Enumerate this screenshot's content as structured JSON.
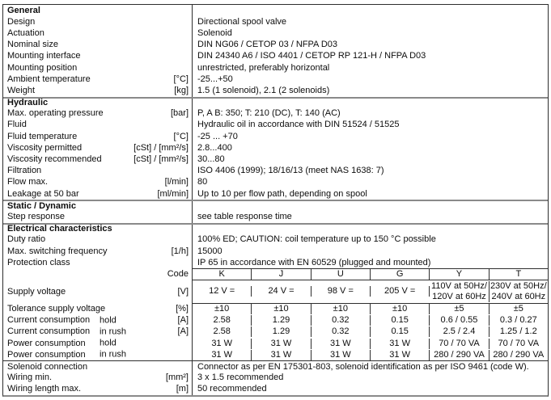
{
  "general": {
    "title": "General",
    "design": {
      "label": "Design",
      "value": "Directional spool valve"
    },
    "actuation": {
      "label": "Actuation",
      "value": "Solenoid"
    },
    "nominal_size": {
      "label": "Nominal size",
      "value": "DIN NG06 / CETOP 03 / NFPA D03"
    },
    "mounting_interface": {
      "label": "Mounting interface",
      "value": "DIN 24340 A6 / ISO 4401 / CETOP RP 121-H / NFPA D03"
    },
    "mounting_position": {
      "label": "Mounting position",
      "value": "unrestricted, preferably horizontal"
    },
    "ambient_temperature": {
      "label": "Ambient temperature",
      "unit": "[°C]",
      "value": "-25...+50"
    },
    "weight": {
      "label": "Weight",
      "unit": "[kg]",
      "value": "1.5 (1 solenoid), 2.1 (2 solenoids)"
    }
  },
  "hydraulic": {
    "title": "Hydraulic",
    "max_operating_pressure": {
      "label": "Max. operating pressure",
      "unit": "[bar]",
      "value": "P, A B: 350; T: 210 (DC), T: 140 (AC)"
    },
    "fluid": {
      "label": "Fluid",
      "value": "Hydraulic oil in accordance with DIN 51524 / 51525"
    },
    "fluid_temperature": {
      "label": "Fluid temperature",
      "unit": "[°C]",
      "value": "-25 ... +70"
    },
    "viscosity_permitted": {
      "label": "Viscosity permitted",
      "unit": "[cSt] / [mm²/s]",
      "value": "2.8...400"
    },
    "viscosity_recommended": {
      "label": "Viscosity recommended",
      "unit": "[cSt] / [mm²/s]",
      "value": "30...80"
    },
    "filtration": {
      "label": "Filtration",
      "value": "ISO 4406 (1999); 18/16/13 (meet NAS 1638: 7)"
    },
    "flow_max": {
      "label": "Flow max.",
      "unit": "[l/min]",
      "value": "80"
    },
    "leakage": {
      "label": "Leakage at 50 bar",
      "unit": "[ml/min]",
      "value": "Up to 10 per flow path, depending on spool"
    }
  },
  "static_dynamic": {
    "title": "Static / Dynamic",
    "step_response": {
      "label": "Step response",
      "value": "see table response time"
    }
  },
  "electrical": {
    "title": "Electrical characteristics",
    "duty_ratio": {
      "label": "Duty ratio",
      "value": "100% ED; CAUTION: coil temperature up to 150 °C possible"
    },
    "max_switching_frequency": {
      "label": "Max. switching frequency",
      "unit": "[1/h]",
      "value": "15000"
    },
    "protection_class": {
      "label": "Protection class",
      "value": "IP 65 in accordance with EN 60529 (plugged and mounted)"
    },
    "code_header": {
      "label": "Code",
      "codes": [
        "K",
        "J",
        "U",
        "G",
        "Y",
        "T"
      ]
    },
    "supply_voltage": {
      "label": "Supply voltage",
      "unit": "[V]",
      "values": [
        "12 V =",
        "24 V =",
        "98 V =",
        "205 V =",
        "110V at 50Hz/\n120V at 60Hz",
        "230V at 50Hz/\n240V at 60Hz"
      ]
    },
    "tolerance": {
      "label": "Tolerance supply voltage",
      "unit": "[%]",
      "values": [
        "±10",
        "±10",
        "±10",
        "±10",
        "±5",
        "±5"
      ]
    },
    "current_hold": {
      "label": "Current consumption",
      "sublabel": "hold",
      "unit": "[A]",
      "values": [
        "2.58",
        "1.29",
        "0.32",
        "0.15",
        "0.6 / 0.55",
        "0.3 / 0.27"
      ]
    },
    "current_inrush": {
      "label": "Current consumption",
      "sublabel": "in rush",
      "unit": "[A]",
      "values": [
        "2.58",
        "1.29",
        "0.32",
        "0.15",
        "2.5 / 2.4",
        "1.25 / 1.2"
      ]
    },
    "power_hold": {
      "label": "Power consumption",
      "sublabel": "hold",
      "values": [
        "31 W",
        "31 W",
        "31 W",
        "31 W",
        "70 / 70 VA",
        "70 / 70 VA"
      ]
    },
    "power_inrush": {
      "label": "Power consumption",
      "sublabel": "in rush",
      "values": [
        "31 W",
        "31 W",
        "31 W",
        "31 W",
        "280 / 290 VA",
        "280 / 290 VA"
      ]
    },
    "solenoid_connection": {
      "label": "Solenoid connection",
      "value": "Connector as per EN 175301-803, solenoid identification as per ISO 9461 (code W)."
    },
    "wiring_min": {
      "label": "Wiring min.",
      "unit": "[mm²]",
      "value": "3 x 1.5 recommended"
    },
    "wiring_length_max": {
      "label": "Wiring length max.",
      "unit": "[m]",
      "value": "50 recommended"
    }
  }
}
